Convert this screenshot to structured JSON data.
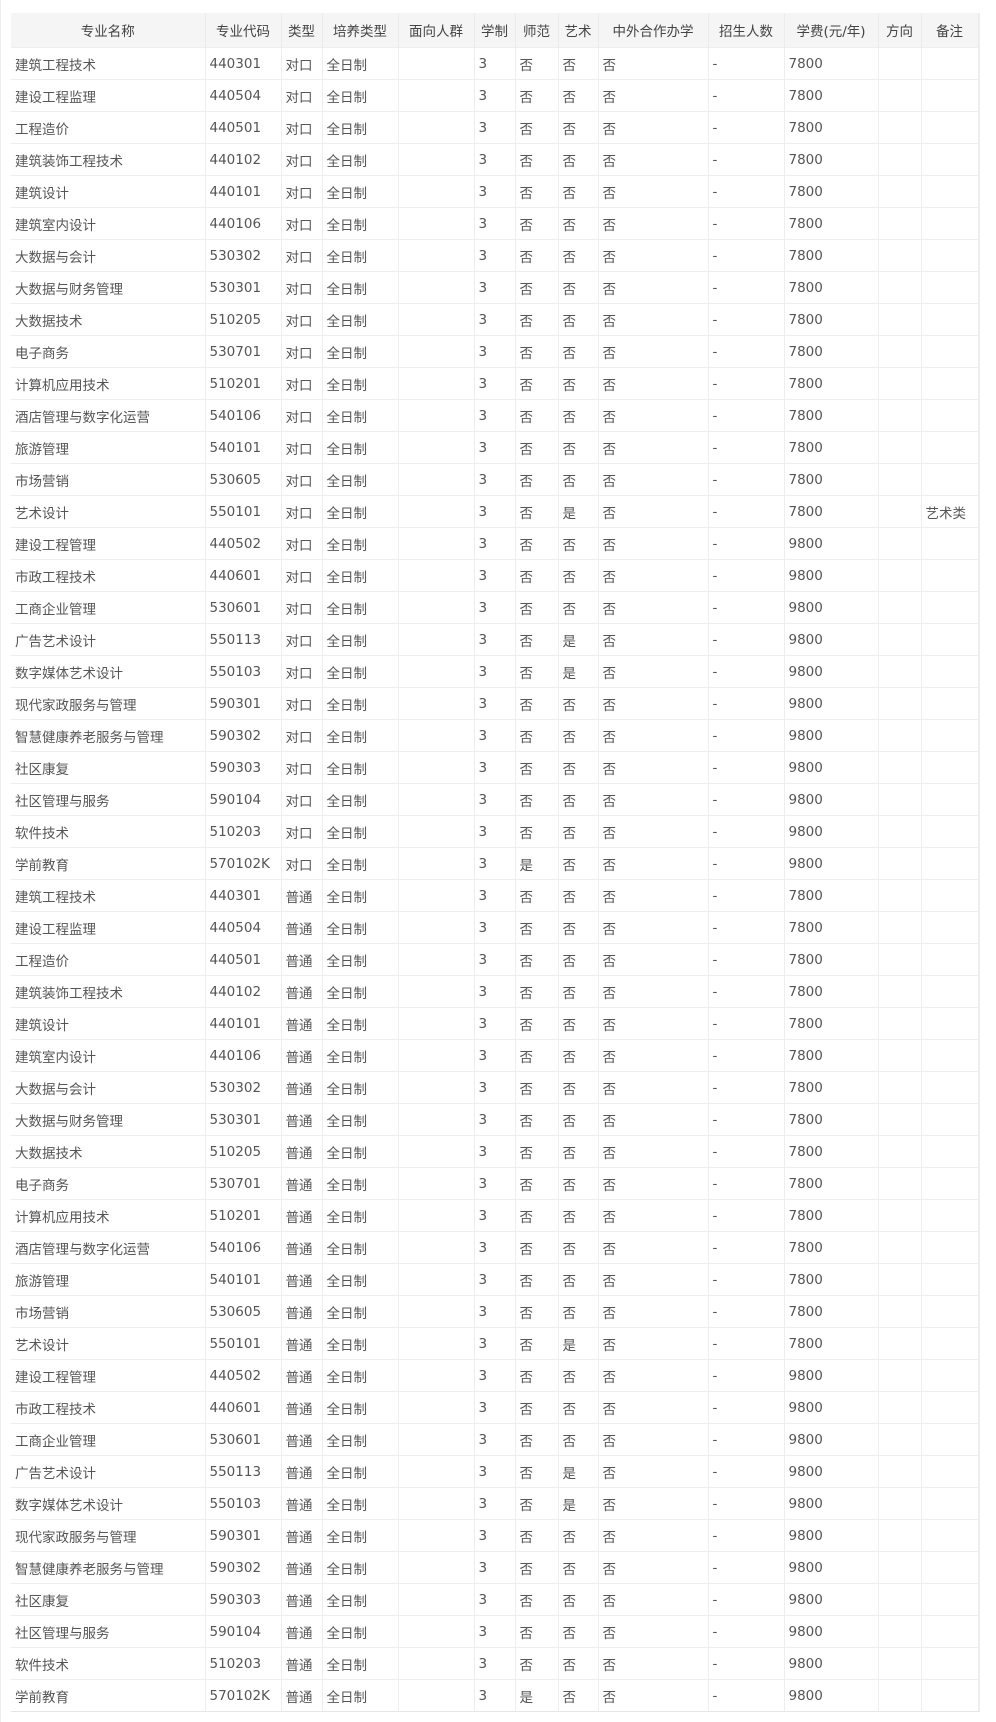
{
  "columns": [
    "专业名称",
    "专业代码",
    "类型",
    "培养类型",
    "面向人群",
    "学制",
    "师范",
    "艺术",
    "中外合作办学",
    "招生人数",
    "学费(元/年)",
    "方向",
    "备注"
  ],
  "majors": [
    [
      "建筑工程技术",
      "440301",
      "否",
      "否",
      "7800",
      ""
    ],
    [
      "建设工程监理",
      "440504",
      "否",
      "否",
      "7800",
      ""
    ],
    [
      "工程造价",
      "440501",
      "否",
      "否",
      "7800",
      ""
    ],
    [
      "建筑装饰工程技术",
      "440102",
      "否",
      "否",
      "7800",
      ""
    ],
    [
      "建筑设计",
      "440101",
      "否",
      "否",
      "7800",
      ""
    ],
    [
      "建筑室内设计",
      "440106",
      "否",
      "否",
      "7800",
      ""
    ],
    [
      "大数据与会计",
      "530302",
      "否",
      "否",
      "7800",
      ""
    ],
    [
      "大数据与财务管理",
      "530301",
      "否",
      "否",
      "7800",
      ""
    ],
    [
      "大数据技术",
      "510205",
      "否",
      "否",
      "7800",
      ""
    ],
    [
      "电子商务",
      "530701",
      "否",
      "否",
      "7800",
      ""
    ],
    [
      "计算机应用技术",
      "510201",
      "否",
      "否",
      "7800",
      ""
    ],
    [
      "酒店管理与数字化运营",
      "540106",
      "否",
      "否",
      "7800",
      ""
    ],
    [
      "旅游管理",
      "540101",
      "否",
      "否",
      "7800",
      ""
    ],
    [
      "市场营销",
      "530605",
      "否",
      "否",
      "7800",
      ""
    ],
    [
      "艺术设计",
      "550101",
      "否",
      "是",
      "7800",
      "艺术类"
    ],
    [
      "建设工程管理",
      "440502",
      "否",
      "否",
      "9800",
      ""
    ],
    [
      "市政工程技术",
      "440601",
      "否",
      "否",
      "9800",
      ""
    ],
    [
      "工商企业管理",
      "530601",
      "否",
      "否",
      "9800",
      ""
    ],
    [
      "广告艺术设计",
      "550113",
      "否",
      "是",
      "9800",
      ""
    ],
    [
      "数字媒体艺术设计",
      "550103",
      "否",
      "是",
      "9800",
      ""
    ],
    [
      "现代家政服务与管理",
      "590301",
      "否",
      "否",
      "9800",
      ""
    ],
    [
      "智慧健康养老服务与管理",
      "590302",
      "否",
      "否",
      "9800",
      ""
    ],
    [
      "社区康复",
      "590303",
      "否",
      "否",
      "9800",
      ""
    ],
    [
      "社区管理与服务",
      "590104",
      "否",
      "否",
      "9800",
      ""
    ],
    [
      "软件技术",
      "510203",
      "否",
      "否",
      "9800",
      ""
    ],
    [
      "学前教育",
      "570102K",
      "是",
      "否",
      "9800",
      ""
    ]
  ],
  "groups": [
    "对口",
    "普通"
  ],
  "common": {
    "training": "全日制",
    "audience": "",
    "years": "3",
    "sino_foreign": "否",
    "enrollment": "-",
    "direction": ""
  }
}
